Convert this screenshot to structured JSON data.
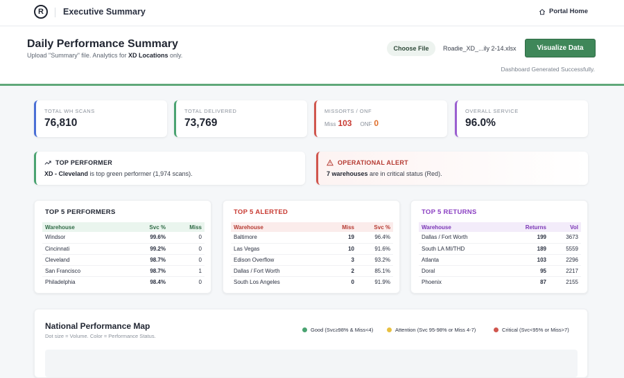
{
  "nav": {
    "logo_letter": "R",
    "title": "Executive Summary",
    "portal_label": "Portal Home"
  },
  "header": {
    "title": "Daily Performance Summary",
    "subtitle_pre": "Upload \"Summary\" file. Analytics for ",
    "subtitle_bold": "XD Locations",
    "subtitle_post": " only.",
    "choose_file_label": "Choose File",
    "file_name": "Roadie_XD_...ily 2-14.xlsx",
    "visualize_label": "Visualize Data",
    "status": "Dashboard Generated Successfully."
  },
  "kpis": {
    "wh_scans": {
      "label": "TOTAL WH SCANS",
      "value": "76,810",
      "color": "#4a6fd6"
    },
    "delivered": {
      "label": "TOTAL DELIVERED",
      "value": "73,769",
      "color": "#4aa371"
    },
    "missorts": {
      "label": "MISSORTS / ONF",
      "miss_label": "Miss",
      "miss_value": "103",
      "onf_label": "ONF",
      "onf_value": "0",
      "color": "#d0564e"
    },
    "service": {
      "label": "OVERALL SERVICE",
      "value": "96.0%",
      "color": "#9a5fd0"
    }
  },
  "top_performer": {
    "title": "TOP PERFORMER",
    "bold": "XD - Cleveland",
    "text": " is top green performer (1,974 scans).",
    "color": "#4aa371"
  },
  "alert": {
    "title": "OPERATIONAL ALERT",
    "bold": "7 warehouses",
    "text": " are in critical status (Red).",
    "color": "#d0564e"
  },
  "performers": {
    "title": "TOP 5 PERFORMERS",
    "headers": [
      "Warehouse",
      "Svc %",
      "Miss"
    ],
    "rows": [
      [
        "Windsor",
        "99.6%",
        "0"
      ],
      [
        "Cincinnati",
        "99.2%",
        "0"
      ],
      [
        "Cleveland",
        "98.7%",
        "0"
      ],
      [
        "San Francisco",
        "98.7%",
        "1"
      ],
      [
        "Philadelphia",
        "98.4%",
        "0"
      ]
    ]
  },
  "alerted": {
    "title": "TOP 5 ALERTED",
    "headers": [
      "Warehouse",
      "Miss",
      "Svc %"
    ],
    "rows": [
      [
        "Baltimore",
        "19",
        "96.4%"
      ],
      [
        "Las Vegas",
        "10",
        "91.6%"
      ],
      [
        "Edison Overflow",
        "3",
        "93.2%"
      ],
      [
        "Dallas / Fort Worth",
        "2",
        "85.1%"
      ],
      [
        "South Los Angeles",
        "0",
        "91.9%"
      ]
    ]
  },
  "returns": {
    "title": "TOP 5 RETURNS",
    "headers": [
      "Warehouse",
      "Returns",
      "Vol"
    ],
    "rows": [
      [
        "Dallas / Fort Worth",
        "199",
        "3673"
      ],
      [
        "South LA MI/THD",
        "189",
        "5559"
      ],
      [
        "Atlanta",
        "103",
        "2296"
      ],
      [
        "Doral",
        "95",
        "2217"
      ],
      [
        "Phoenix",
        "87",
        "2155"
      ]
    ]
  },
  "map": {
    "title": "National Performance Map",
    "subtitle": "Dot size = Volume. Color = Performance Status.",
    "legend": [
      {
        "label": "Good (Svc≥98% & Miss<4)",
        "color": "#4aa371"
      },
      {
        "label": "Attention (Svc 95-98% or Miss 4-7)",
        "color": "#e8c040"
      },
      {
        "label": "Critical (Svc<95% or Miss>7)",
        "color": "#d0564e"
      }
    ]
  }
}
